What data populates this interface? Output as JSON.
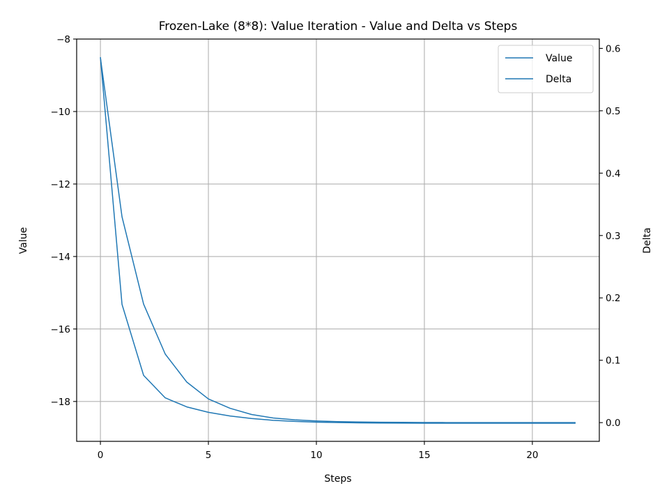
{
  "chart_data": {
    "type": "line",
    "title": "Frozen-Lake (8*8): Value Iteration - Value and Delta vs Steps",
    "xlabel": "Steps",
    "ylabel_left": "Value",
    "ylabel_right": "Delta",
    "xlim": [
      -1.1,
      23.1
    ],
    "ylim_left": [
      -19.1,
      -8.0
    ],
    "ylim_right": [
      -0.03,
      0.615
    ],
    "x_ticks": [
      0,
      5,
      10,
      15,
      20
    ],
    "y_ticks_left": [
      -8,
      -10,
      -12,
      -14,
      -16,
      -18
    ],
    "y_ticks_left_labels": [
      "−8",
      "−10",
      "−12",
      "−14",
      "−16",
      "−18"
    ],
    "y_ticks_right": [
      0.0,
      0.1,
      0.2,
      0.3,
      0.4,
      0.5,
      0.6
    ],
    "y_ticks_right_labels": [
      "0.0",
      "0.1",
      "0.2",
      "0.3",
      "0.4",
      "0.5",
      "0.6"
    ],
    "grid": true,
    "legend_position": "top-right",
    "color": "#1f77b4",
    "x": [
      0,
      1,
      2,
      3,
      4,
      5,
      6,
      7,
      8,
      9,
      10,
      11,
      12,
      13,
      14,
      15,
      16,
      17,
      18,
      19,
      20,
      21,
      22
    ],
    "series": [
      {
        "name": "Value",
        "axis": "left",
        "values": [
          -8.5,
          -15.32,
          -17.28,
          -17.9,
          -18.15,
          -18.3,
          -18.4,
          -18.47,
          -18.52,
          -18.55,
          -18.57,
          -18.58,
          -18.59,
          -18.595,
          -18.598,
          -18.6,
          -18.6,
          -18.6,
          -18.6,
          -18.6,
          -18.6,
          -18.6,
          -18.6
        ]
      },
      {
        "name": "Delta",
        "axis": "right",
        "values": [
          0.585,
          0.33,
          0.19,
          0.11,
          0.065,
          0.038,
          0.023,
          0.013,
          0.0075,
          0.0045,
          0.0027,
          0.0016,
          0.001,
          0.0006,
          0.0004,
          0.0002,
          0.0001,
          0.0001,
          0.0,
          0.0,
          0.0,
          0.0,
          0.0
        ]
      }
    ]
  }
}
